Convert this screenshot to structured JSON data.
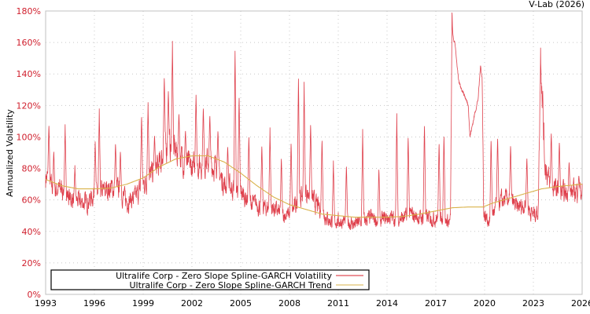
{
  "header": {
    "credit": "V-Lab (2026)"
  },
  "legend": {
    "items": [
      {
        "label": "Ultralife Corp - Zero Slope Spline-GARCH Volatility",
        "color": "#d9202e"
      },
      {
        "label": "Ultralife Corp - Zero Slope Spline-GARCH Trend",
        "color": "#d9b24a"
      }
    ]
  },
  "colors": {
    "volatility": "#d9202e",
    "trend": "#d9b24a",
    "ytick": "#d0202e",
    "grid": "#c8c8c8",
    "axis": "#c0c0c0"
  },
  "chart_data": {
    "type": "line",
    "title": "",
    "xlabel": "",
    "ylabel": "Annualized Volatility",
    "xlim": [
      1993,
      2026
    ],
    "ylim": [
      0,
      180
    ],
    "x_ticks": [
      "1993",
      "1996",
      "1999",
      "2002",
      "2005",
      "2008",
      "2011",
      "2014",
      "2017",
      "2020",
      "2023",
      "2026"
    ],
    "y_ticks": [
      "0%",
      "20%",
      "40%",
      "60%",
      "80%",
      "100%",
      "120%",
      "140%",
      "160%",
      "180%"
    ],
    "grid": true,
    "legend_position": "lower-left",
    "series": [
      {
        "name": "Ultralife Corp - Zero Slope Spline-GARCH Volatility",
        "note": "approximate baseline levels and spikes read from the plot (year, % annualized)",
        "baseline": [
          [
            1993.0,
            72
          ],
          [
            1993.5,
            62
          ],
          [
            1994.0,
            64
          ],
          [
            1994.5,
            58
          ],
          [
            1995.0,
            56
          ],
          [
            1995.5,
            55
          ],
          [
            1996.0,
            60
          ],
          [
            1996.5,
            62
          ],
          [
            1997.0,
            64
          ],
          [
            1997.5,
            63
          ],
          [
            1998.0,
            56
          ],
          [
            1998.5,
            58
          ],
          [
            1999.0,
            66
          ],
          [
            1999.5,
            72
          ],
          [
            2000.0,
            78
          ],
          [
            2000.5,
            90
          ],
          [
            2001.0,
            86
          ],
          [
            2001.5,
            80
          ],
          [
            2002.0,
            76
          ],
          [
            2002.5,
            78
          ],
          [
            2003.0,
            80
          ],
          [
            2003.5,
            76
          ],
          [
            2004.0,
            66
          ],
          [
            2004.5,
            64
          ],
          [
            2005.0,
            62
          ],
          [
            2005.5,
            56
          ],
          [
            2006.0,
            54
          ],
          [
            2006.5,
            52
          ],
          [
            2007.0,
            52
          ],
          [
            2007.5,
            48
          ],
          [
            2008.0,
            48
          ],
          [
            2008.5,
            55
          ],
          [
            2009.0,
            62
          ],
          [
            2009.5,
            56
          ],
          [
            2010.0,
            50
          ],
          [
            2010.5,
            44
          ],
          [
            2011.0,
            44
          ],
          [
            2011.5,
            44
          ],
          [
            2012.0,
            42
          ],
          [
            2012.5,
            44
          ],
          [
            2013.0,
            46
          ],
          [
            2013.5,
            44
          ],
          [
            2014.0,
            46
          ],
          [
            2014.5,
            46
          ],
          [
            2015.0,
            46
          ],
          [
            2015.5,
            48
          ],
          [
            2016.0,
            46
          ],
          [
            2016.5,
            46
          ],
          [
            2017.0,
            46
          ],
          [
            2017.5,
            44
          ],
          [
            2017.9,
            44
          ],
          [
            2018.0,
            165
          ],
          [
            2018.2,
            158
          ],
          [
            2018.4,
            135
          ],
          [
            2018.7,
            128
          ],
          [
            2019.0,
            120
          ],
          [
            2019.1,
            100
          ],
          [
            2019.4,
            115
          ],
          [
            2019.6,
            124
          ],
          [
            2019.75,
            145
          ],
          [
            2019.85,
            138
          ],
          [
            2019.95,
            48
          ],
          [
            2020.3,
            44
          ],
          [
            2020.8,
            55
          ],
          [
            2021.5,
            58
          ],
          [
            2022.0,
            52
          ],
          [
            2022.5,
            54
          ],
          [
            2023.0,
            48
          ],
          [
            2023.3,
            50
          ],
          [
            2023.45,
            150
          ],
          [
            2023.7,
            80
          ],
          [
            2024.0,
            66
          ],
          [
            2024.5,
            62
          ],
          [
            2025.0,
            60
          ],
          [
            2025.5,
            62
          ],
          [
            2026.0,
            62
          ]
        ],
        "spikes": [
          [
            1993.2,
            109
          ],
          [
            1993.5,
            92
          ],
          [
            1994.2,
            108
          ],
          [
            1994.8,
            82
          ],
          [
            1996.05,
            98
          ],
          [
            1996.3,
            118
          ],
          [
            1997.3,
            97
          ],
          [
            1997.6,
            92
          ],
          [
            1998.9,
            115
          ],
          [
            1999.3,
            122
          ],
          [
            1999.7,
            102
          ],
          [
            2000.3,
            140
          ],
          [
            2000.55,
            130
          ],
          [
            2000.8,
            161
          ],
          [
            2001.2,
            116
          ],
          [
            2001.6,
            105
          ],
          [
            2002.25,
            128
          ],
          [
            2002.7,
            120
          ],
          [
            2003.1,
            115
          ],
          [
            2003.6,
            105
          ],
          [
            2004.2,
            95
          ],
          [
            2004.65,
            157
          ],
          [
            2004.9,
            128
          ],
          [
            2005.5,
            102
          ],
          [
            2006.3,
            96
          ],
          [
            2006.8,
            106
          ],
          [
            2007.5,
            88
          ],
          [
            2008.1,
            98
          ],
          [
            2008.55,
            139
          ],
          [
            2008.9,
            135
          ],
          [
            2009.3,
            110
          ],
          [
            2010.0,
            100
          ],
          [
            2010.7,
            85
          ],
          [
            2011.5,
            83
          ],
          [
            2012.5,
            105
          ],
          [
            2013.5,
            81
          ],
          [
            2014.6,
            115
          ],
          [
            2015.3,
            102
          ],
          [
            2016.3,
            110
          ],
          [
            2017.2,
            98
          ],
          [
            2017.5,
            103
          ],
          [
            2020.4,
            100
          ],
          [
            2020.8,
            101
          ],
          [
            2021.6,
            96
          ],
          [
            2022.6,
            88
          ],
          [
            2024.1,
            104
          ],
          [
            2024.6,
            98
          ],
          [
            2025.2,
            85
          ],
          [
            2025.8,
            76
          ]
        ]
      },
      {
        "name": "Ultralife Corp - Zero Slope Spline-GARCH Trend",
        "points": [
          [
            1993.0,
            73
          ],
          [
            1994.0,
            69
          ],
          [
            1995.0,
            67
          ],
          [
            1996.0,
            67
          ],
          [
            1997.0,
            67.5
          ],
          [
            1998.0,
            70
          ],
          [
            1999.0,
            74
          ],
          [
            2000.0,
            81
          ],
          [
            2001.0,
            86
          ],
          [
            2002.0,
            88
          ],
          [
            2003.0,
            88
          ],
          [
            2004.0,
            84
          ],
          [
            2005.0,
            77
          ],
          [
            2006.0,
            69
          ],
          [
            2007.0,
            62
          ],
          [
            2008.0,
            57
          ],
          [
            2009.0,
            54
          ],
          [
            2010.0,
            51
          ],
          [
            2011.0,
            50
          ],
          [
            2012.0,
            49
          ],
          [
            2013.0,
            49
          ],
          [
            2014.0,
            49
          ],
          [
            2015.0,
            49.5
          ],
          [
            2016.0,
            51
          ],
          [
            2017.0,
            53
          ],
          [
            2018.0,
            55
          ],
          [
            2019.0,
            55.5
          ],
          [
            2019.9,
            55.5
          ],
          [
            2020.5,
            58
          ],
          [
            2021.5,
            61
          ],
          [
            2022.5,
            64
          ],
          [
            2023.5,
            67
          ],
          [
            2024.5,
            68.5
          ],
          [
            2025.5,
            69.5
          ],
          [
            2026.0,
            70
          ]
        ]
      }
    ]
  }
}
